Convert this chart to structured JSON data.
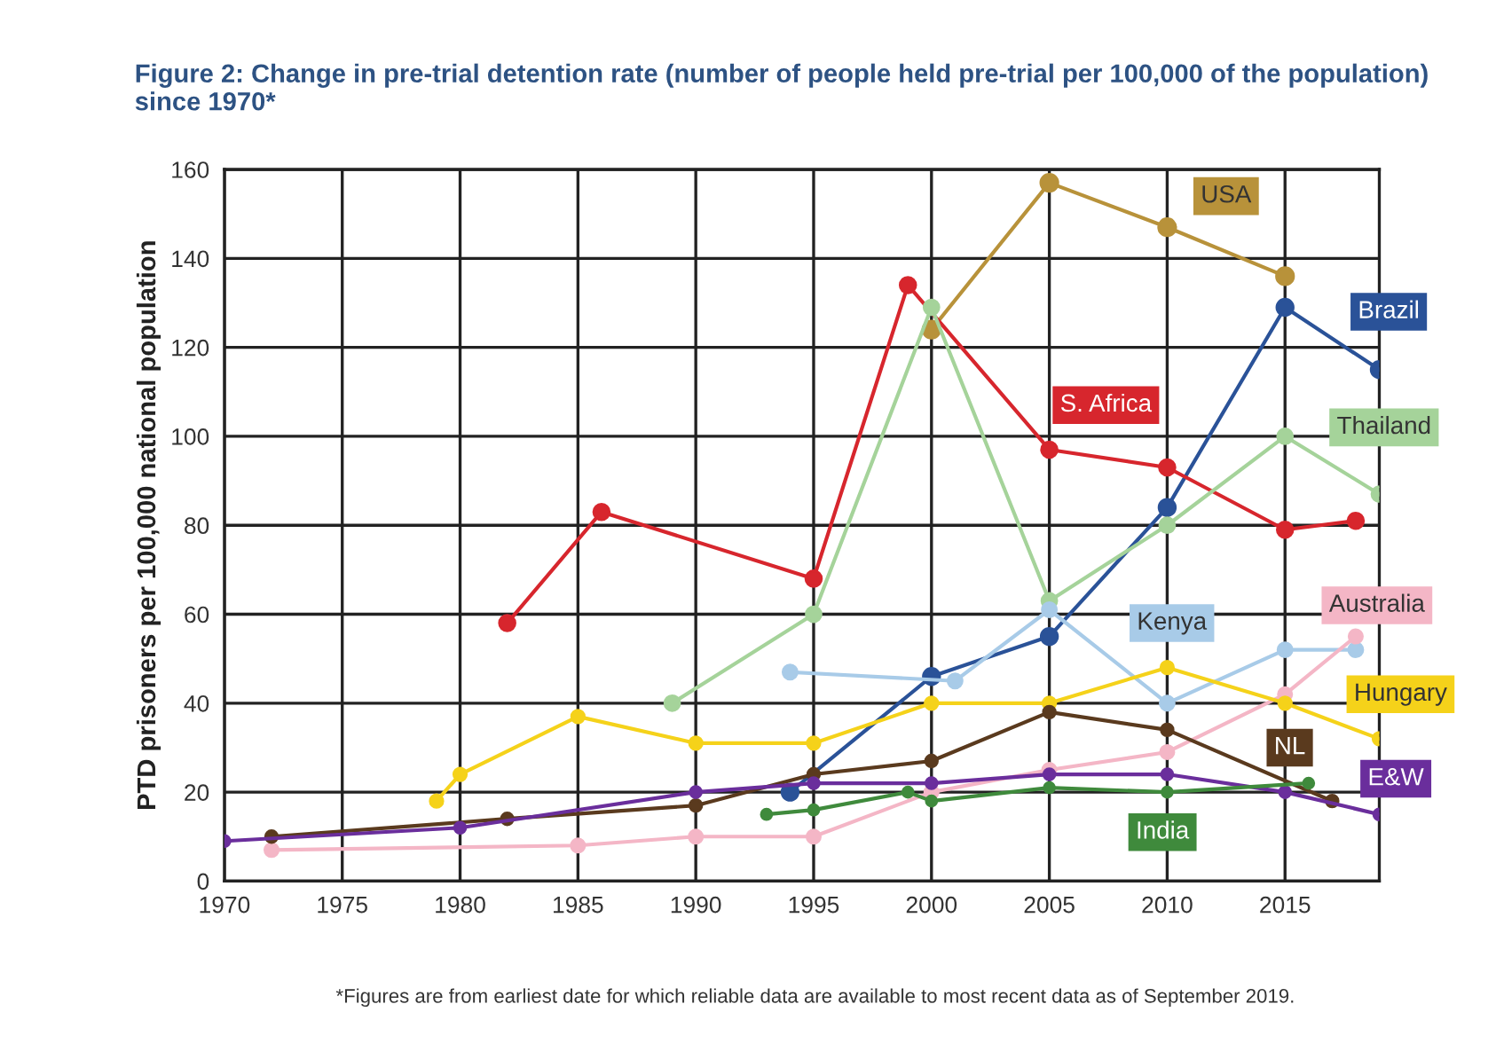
{
  "chart_data": {
    "type": "line",
    "title": "Figure 2: Change in pre-trial detention rate (number of people held pre-trial per 100,000 of the population) since 1970*",
    "ylabel": "PTD prisoners per 100,000 national population",
    "annotations": [
      "*Figures are from earliest date for which reliable data are available to most recent data as of September 2019."
    ],
    "xlim": [
      1970,
      2019
    ],
    "xticks": [
      1970,
      1975,
      1980,
      1985,
      1990,
      1995,
      2000,
      2005,
      2010,
      2015
    ],
    "ylim": [
      0,
      160
    ],
    "yticks": [
      0,
      20,
      40,
      60,
      80,
      100,
      120,
      140,
      160
    ],
    "grid": true,
    "legend": false,
    "marker": "circle",
    "line_style": "solid",
    "series": [
      {
        "name": "USA",
        "color": "#b8923a",
        "x": [
          2000,
          2005,
          2010,
          2015
        ],
        "values": [
          124,
          157,
          147,
          136
        ]
      },
      {
        "name": "Brazil",
        "color": "#2a5298",
        "x": [
          1994,
          2000,
          2005,
          2010,
          2015,
          2019
        ],
        "values": [
          20,
          46,
          55,
          84,
          129,
          115
        ]
      },
      {
        "name": "S. Africa",
        "color": "#d7262d",
        "x": [
          1982,
          1986,
          1995,
          1999,
          2005,
          2010,
          2015,
          2018
        ],
        "values": [
          58,
          83,
          68,
          134,
          97,
          93,
          79,
          81
        ]
      },
      {
        "name": "Thailand",
        "color": "#a5d39a",
        "x": [
          1989,
          1995,
          2000,
          2005,
          2010,
          2015,
          2019
        ],
        "values": [
          40,
          60,
          129,
          63,
          80,
          100,
          87
        ]
      },
      {
        "name": "Kenya",
        "color": "#a8cbe8",
        "x": [
          1994,
          2001,
          2005,
          2010,
          2015,
          2018
        ],
        "values": [
          47,
          45,
          61,
          40,
          52,
          52
        ]
      },
      {
        "name": "Australia",
        "color": "#f4b6c6",
        "x": [
          1972,
          1985,
          1990,
          1995,
          2000,
          2005,
          2010,
          2015,
          2018
        ],
        "values": [
          7,
          8,
          10,
          10,
          20,
          25,
          29,
          42,
          55
        ]
      },
      {
        "name": "Hungary",
        "color": "#f5d21a",
        "x": [
          1979,
          1980,
          1985,
          1990,
          1995,
          2000,
          2005,
          2010,
          2015,
          2019
        ],
        "values": [
          18,
          24,
          37,
          31,
          31,
          40,
          40,
          48,
          40,
          32
        ]
      },
      {
        "name": "NL",
        "color": "#5a3a1e",
        "x": [
          1972,
          1982,
          1990,
          1995,
          2000,
          2005,
          2010,
          2017
        ],
        "values": [
          10,
          14,
          17,
          24,
          27,
          38,
          34,
          18
        ]
      },
      {
        "name": "E&W",
        "color": "#6a2e9c",
        "x": [
          1970,
          1980,
          1990,
          1995,
          2000,
          2005,
          2010,
          2015,
          2019
        ],
        "values": [
          9,
          12,
          20,
          22,
          22,
          24,
          24,
          20,
          15
        ]
      },
      {
        "name": "India",
        "color": "#3f8a3c",
        "x": [
          1993,
          1995,
          1999,
          2000,
          2005,
          2010,
          2016
        ],
        "values": [
          15,
          16,
          20,
          18,
          21,
          20,
          22
        ]
      }
    ]
  }
}
